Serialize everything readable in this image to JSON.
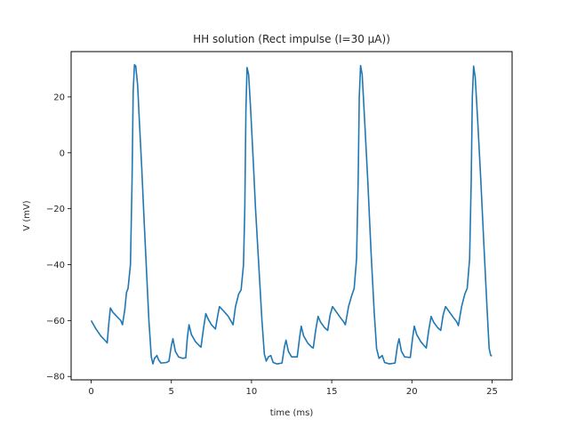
{
  "chart_data": {
    "type": "line",
    "title": "HH solution (Rect impulse (I=30 μA))",
    "xlabel": "time (ms)",
    "ylabel": "V (mV)",
    "xlim": [
      -1.25,
      26.25
    ],
    "ylim": [
      -81.2,
      36.2
    ],
    "xticks": [
      0,
      5,
      10,
      15,
      20,
      25
    ],
    "xtick_labels": [
      "0",
      "5",
      "10",
      "15",
      "20",
      "25"
    ],
    "yticks": [
      -80,
      -60,
      -40,
      -20,
      0,
      20
    ],
    "ytick_labels": [
      "−80",
      "−60",
      "−40",
      "−20",
      "0",
      "20"
    ],
    "grid": false,
    "legend": "none",
    "series": [
      {
        "color": "#1f77b4",
        "points": [
          [
            0.0,
            -60
          ],
          [
            0.3,
            -63
          ],
          [
            0.6,
            -65.5
          ],
          [
            0.85,
            -67
          ],
          [
            1.0,
            -68
          ],
          [
            1.1,
            -61
          ],
          [
            1.2,
            -55.5
          ],
          [
            1.35,
            -57
          ],
          [
            1.6,
            -58.5
          ],
          [
            1.85,
            -60
          ],
          [
            1.95,
            -61.5
          ],
          [
            2.1,
            -56
          ],
          [
            2.2,
            -50
          ],
          [
            2.3,
            -48.5
          ],
          [
            2.45,
            -40
          ],
          [
            2.55,
            -10
          ],
          [
            2.62,
            22
          ],
          [
            2.7,
            31.5
          ],
          [
            2.78,
            31
          ],
          [
            2.9,
            24
          ],
          [
            3.0,
            12
          ],
          [
            3.15,
            -5
          ],
          [
            3.3,
            -24
          ],
          [
            3.45,
            -42
          ],
          [
            3.6,
            -60
          ],
          [
            3.75,
            -73
          ],
          [
            3.85,
            -75.5
          ],
          [
            3.95,
            -73.5
          ],
          [
            4.1,
            -72.5
          ],
          [
            4.2,
            -74
          ],
          [
            4.35,
            -75.2
          ],
          [
            4.7,
            -75
          ],
          [
            4.85,
            -74.5
          ],
          [
            5.0,
            -69
          ],
          [
            5.1,
            -66.5
          ],
          [
            5.25,
            -71
          ],
          [
            5.45,
            -73
          ],
          [
            5.7,
            -73.5
          ],
          [
            5.9,
            -73.3
          ],
          [
            6.0,
            -66
          ],
          [
            6.1,
            -61.5
          ],
          [
            6.25,
            -65
          ],
          [
            6.5,
            -67.5
          ],
          [
            6.75,
            -69
          ],
          [
            6.85,
            -69.5
          ],
          [
            7.0,
            -63
          ],
          [
            7.15,
            -57.5
          ],
          [
            7.3,
            -59.5
          ],
          [
            7.5,
            -61.5
          ],
          [
            7.75,
            -63
          ],
          [
            7.9,
            -58
          ],
          [
            8.0,
            -55
          ],
          [
            8.25,
            -56.5
          ],
          [
            8.55,
            -58.5
          ],
          [
            8.75,
            -60.5
          ],
          [
            8.85,
            -61.5
          ],
          [
            9.0,
            -55
          ],
          [
            9.2,
            -50.5
          ],
          [
            9.35,
            -49
          ],
          [
            9.5,
            -40
          ],
          [
            9.58,
            -20
          ],
          [
            9.65,
            15
          ],
          [
            9.72,
            30.5
          ],
          [
            9.82,
            28
          ],
          [
            9.95,
            15
          ],
          [
            10.1,
            -2
          ],
          [
            10.25,
            -20
          ],
          [
            10.45,
            -40
          ],
          [
            10.65,
            -60
          ],
          [
            10.8,
            -72
          ],
          [
            10.92,
            -74.5
          ],
          [
            11.05,
            -73
          ],
          [
            11.2,
            -72.5
          ],
          [
            11.35,
            -75
          ],
          [
            11.6,
            -75.5
          ],
          [
            11.9,
            -75.2
          ],
          [
            12.05,
            -69.5
          ],
          [
            12.15,
            -67
          ],
          [
            12.3,
            -71
          ],
          [
            12.5,
            -73
          ],
          [
            12.85,
            -73
          ],
          [
            13.0,
            -66
          ],
          [
            13.1,
            -62
          ],
          [
            13.25,
            -65.5
          ],
          [
            13.5,
            -68
          ],
          [
            13.75,
            -69.5
          ],
          [
            13.85,
            -69.8
          ],
          [
            14.0,
            -63.5
          ],
          [
            14.15,
            -58.5
          ],
          [
            14.3,
            -60.5
          ],
          [
            14.55,
            -62.5
          ],
          [
            14.75,
            -63.5
          ],
          [
            14.9,
            -58
          ],
          [
            15.05,
            -55
          ],
          [
            15.3,
            -57
          ],
          [
            15.55,
            -59
          ],
          [
            15.75,
            -60.5
          ],
          [
            15.85,
            -61.5
          ],
          [
            16.05,
            -55
          ],
          [
            16.25,
            -51
          ],
          [
            16.4,
            -48.5
          ],
          [
            16.55,
            -38
          ],
          [
            16.65,
            -10
          ],
          [
            16.72,
            20
          ],
          [
            16.8,
            31.2
          ],
          [
            16.9,
            28
          ],
          [
            17.05,
            12
          ],
          [
            17.25,
            -10
          ],
          [
            17.45,
            -35
          ],
          [
            17.65,
            -57
          ],
          [
            17.8,
            -70
          ],
          [
            17.95,
            -73.5
          ],
          [
            18.05,
            -73
          ],
          [
            18.15,
            -72.5
          ],
          [
            18.3,
            -75
          ],
          [
            18.6,
            -75.5
          ],
          [
            18.95,
            -75.2
          ],
          [
            19.1,
            -69
          ],
          [
            19.2,
            -66.5
          ],
          [
            19.35,
            -71
          ],
          [
            19.55,
            -73
          ],
          [
            19.9,
            -73.2
          ],
          [
            20.05,
            -66
          ],
          [
            20.15,
            -62
          ],
          [
            20.3,
            -65
          ],
          [
            20.55,
            -67.5
          ],
          [
            20.8,
            -69.2
          ],
          [
            20.9,
            -69.8
          ],
          [
            21.05,
            -63.5
          ],
          [
            21.2,
            -58.5
          ],
          [
            21.35,
            -60.5
          ],
          [
            21.6,
            -62.5
          ],
          [
            21.8,
            -63.5
          ],
          [
            21.95,
            -58
          ],
          [
            22.1,
            -55
          ],
          [
            22.35,
            -57
          ],
          [
            22.6,
            -59
          ],
          [
            22.8,
            -60.5
          ],
          [
            22.9,
            -61.8
          ],
          [
            23.1,
            -55
          ],
          [
            23.3,
            -50.5
          ],
          [
            23.45,
            -48.5
          ],
          [
            23.6,
            -38
          ],
          [
            23.7,
            -10
          ],
          [
            23.77,
            20
          ],
          [
            23.85,
            31
          ],
          [
            23.95,
            27
          ],
          [
            24.1,
            12
          ],
          [
            24.3,
            -10
          ],
          [
            24.5,
            -34
          ],
          [
            24.7,
            -57
          ],
          [
            24.82,
            -70
          ],
          [
            24.92,
            -72.5
          ],
          [
            25.0,
            -72.6
          ]
        ]
      }
    ]
  }
}
